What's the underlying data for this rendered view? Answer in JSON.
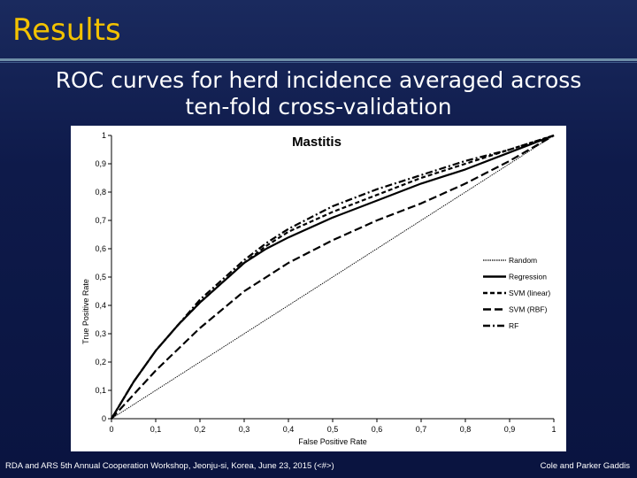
{
  "slide": {
    "title": "Results",
    "subtitle": "ROC curves for herd incidence averaged across ten-fold cross-validation",
    "footer_left": "RDA and ARS 5th Annual Cooperation Workshop, Jeonju-si, Korea, June 23, 2015 (<#>)",
    "footer_right": "Cole and Parker Gaddis"
  },
  "chart_data": {
    "type": "line",
    "title": "Mastitis",
    "xlabel": "False Positive Rate",
    "ylabel": "True Positive Rate",
    "xlim": [
      0,
      1
    ],
    "ylim": [
      0,
      1
    ],
    "x_ticks": [
      0,
      0.1,
      0.2,
      0.3,
      0.4,
      0.5,
      0.6,
      0.7,
      0.8,
      0.9,
      1
    ],
    "x_tick_labels": [
      "0",
      "0,1",
      "0,2",
      "0,3",
      "0,4",
      "0,5",
      "0,6",
      "0,7",
      "0,8",
      "0,9",
      "1"
    ],
    "y_ticks": [
      0,
      0.1,
      0.2,
      0.3,
      0.4,
      0.5,
      0.6,
      0.7,
      0.8,
      0.9,
      1
    ],
    "y_tick_labels": [
      "0",
      "0,1",
      "0,2",
      "0,3",
      "0,4",
      "0,5",
      "0,6",
      "0,7",
      "0,8",
      "0,9",
      "1"
    ],
    "grid": false,
    "legend_position": "right",
    "series": [
      {
        "name": "Random",
        "style": "dotted-thin",
        "color": "#000000",
        "x": [
          0,
          1
        ],
        "y": [
          0,
          1
        ]
      },
      {
        "name": "Regression",
        "style": "solid",
        "color": "#000000",
        "x": [
          0,
          0.05,
          0.1,
          0.15,
          0.2,
          0.25,
          0.3,
          0.35,
          0.4,
          0.5,
          0.6,
          0.7,
          0.8,
          0.9,
          1
        ],
        "y": [
          0,
          0.13,
          0.24,
          0.33,
          0.41,
          0.48,
          0.55,
          0.6,
          0.64,
          0.71,
          0.77,
          0.83,
          0.88,
          0.94,
          1
        ]
      },
      {
        "name": "SVM (linear)",
        "style": "short-dash",
        "color": "#000000",
        "x": [
          0,
          0.05,
          0.1,
          0.15,
          0.2,
          0.25,
          0.3,
          0.35,
          0.4,
          0.5,
          0.6,
          0.7,
          0.8,
          0.9,
          1
        ],
        "y": [
          0,
          0.13,
          0.24,
          0.33,
          0.41,
          0.48,
          0.55,
          0.61,
          0.66,
          0.73,
          0.79,
          0.85,
          0.9,
          0.95,
          1
        ]
      },
      {
        "name": "SVM (RBF)",
        "style": "long-dash",
        "color": "#000000",
        "x": [
          0,
          0.1,
          0.2,
          0.3,
          0.4,
          0.5,
          0.6,
          0.7,
          0.8,
          0.9,
          1
        ],
        "y": [
          0,
          0.17,
          0.32,
          0.45,
          0.55,
          0.63,
          0.7,
          0.76,
          0.83,
          0.91,
          1
        ]
      },
      {
        "name": "RF",
        "style": "dash-dot",
        "color": "#000000",
        "x": [
          0,
          0.05,
          0.1,
          0.15,
          0.2,
          0.25,
          0.3,
          0.35,
          0.4,
          0.5,
          0.6,
          0.7,
          0.8,
          0.9,
          1
        ],
        "y": [
          0,
          0.13,
          0.24,
          0.33,
          0.42,
          0.49,
          0.56,
          0.62,
          0.67,
          0.75,
          0.81,
          0.86,
          0.91,
          0.95,
          1
        ]
      }
    ]
  }
}
